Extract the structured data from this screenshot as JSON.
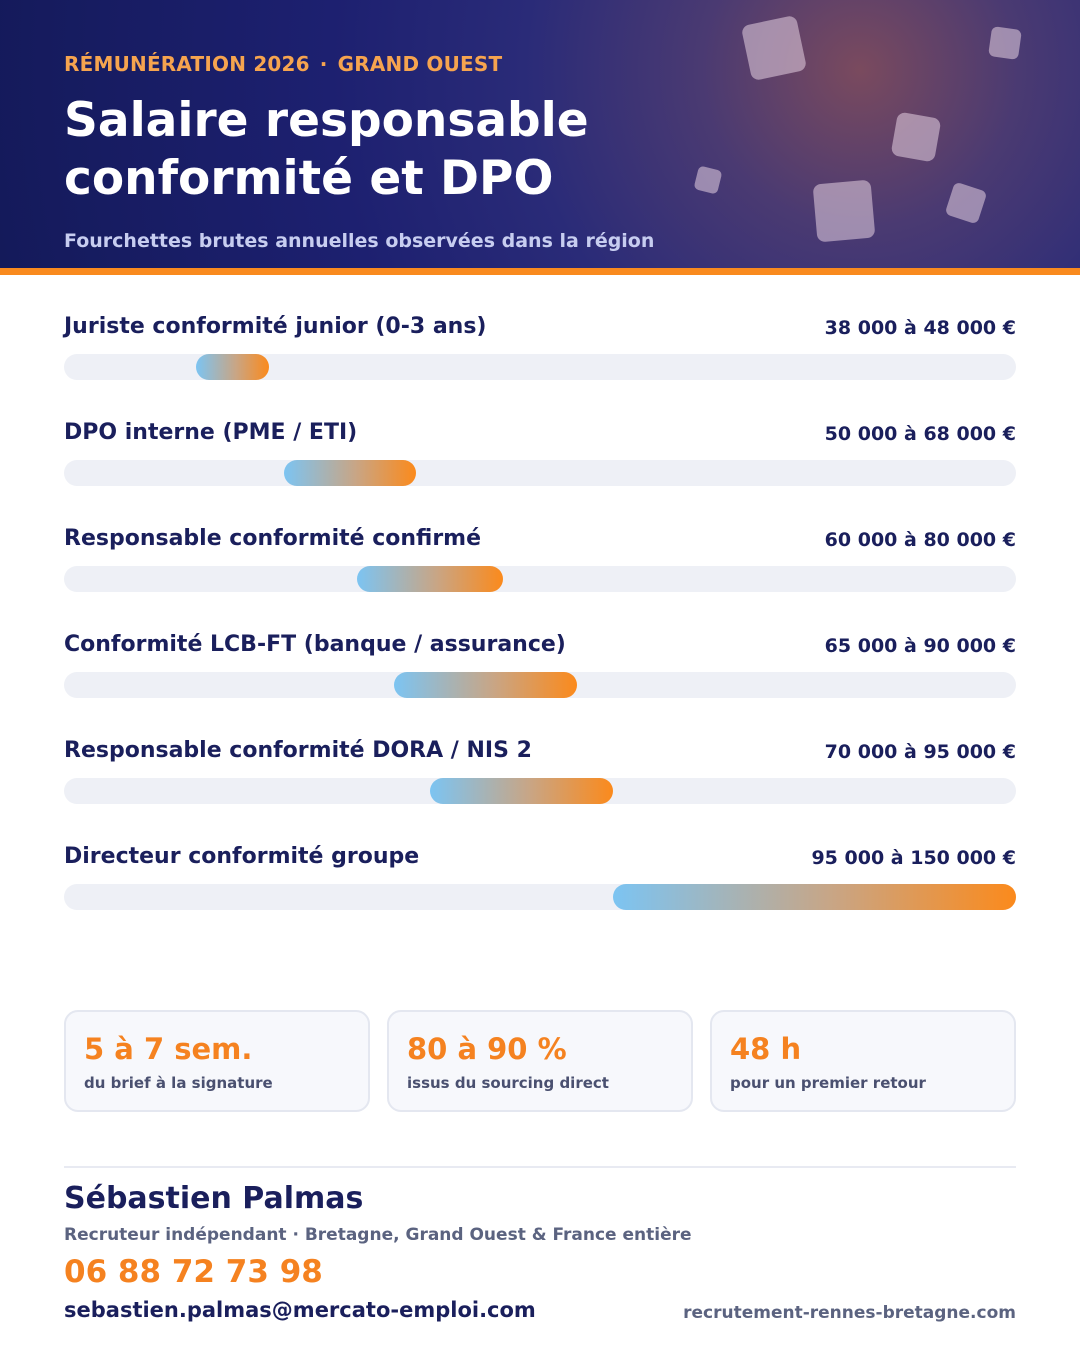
{
  "header": {
    "kicker_left": "RÉMUNÉRATION 2026",
    "kicker_sep": "·",
    "kicker_right": "GRAND OUEST",
    "title": "Salaire responsable conformité et DPO",
    "subtitle": "Fourchettes brutes annuelles observées dans la région"
  },
  "chart_data": {
    "type": "bar",
    "orientation": "horizontal-range",
    "unit": "€",
    "xlim": [
      20000,
      150000
    ],
    "rows": [
      {
        "label": "Juriste conformité junior (0-3 ans)",
        "min": 38000,
        "max": 48000,
        "display": "38 000 à 48 000 €"
      },
      {
        "label": "DPO interne (PME / ETI)",
        "min": 50000,
        "max": 68000,
        "display": "50 000 à 68 000 €"
      },
      {
        "label": "Responsable conformité confirmé",
        "min": 60000,
        "max": 80000,
        "display": "60 000 à 80 000 €"
      },
      {
        "label": "Conformité LCB-FT (banque / assurance)",
        "min": 65000,
        "max": 90000,
        "display": "65 000 à 90 000 €"
      },
      {
        "label": "Responsable conformité DORA / NIS 2",
        "min": 70000,
        "max": 95000,
        "display": "70 000 à 95 000 €"
      },
      {
        "label": "Directeur conformité groupe",
        "min": 95000,
        "max": 150000,
        "display": "95 000 à 150 000 €"
      }
    ],
    "colors": {
      "start": "#7cc4f2",
      "end": "#fb8a1c",
      "track": "#eef0f6"
    }
  },
  "stats": [
    {
      "value": "5 à 7 sem.",
      "label": "du brief à la signature"
    },
    {
      "value": "80 à 90 %",
      "label": "issus du sourcing direct"
    },
    {
      "value": "48 h",
      "label": "pour un premier retour"
    }
  ],
  "contact": {
    "name": "Sébastien Palmas",
    "role": "Recruteur indépendant · Bretagne, Grand Ouest & France entière",
    "phone": "06 88 72 73 98",
    "email": "sebastien.palmas@mercato-emploi.com",
    "website": "recrutement-rennes-bretagne.com"
  },
  "colors": {
    "navy": "#1a1f5c",
    "accent": "#f58220",
    "header_bg": "#1d2070"
  }
}
